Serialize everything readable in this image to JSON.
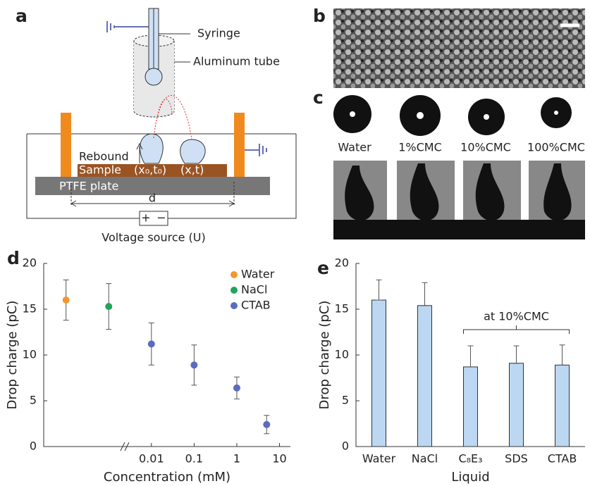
{
  "panel_labels": [
    "a",
    "b",
    "c",
    "d",
    "e"
  ],
  "diagram": {
    "syringe": "Syringe",
    "tube": "Aluminum tube",
    "rebound": "Rebound",
    "sample": "Sample",
    "position0": "(x₀,t₀)",
    "position": "(x,t)",
    "plate": "PTFE plate",
    "distance": "d",
    "plus": "+",
    "minus": "−",
    "source": "Voltage source (U)"
  },
  "images": {
    "liquids": [
      "Water",
      "1%CMC",
      "10%CMC",
      "100%CMC"
    ]
  },
  "chart_data": [
    {
      "type": "scatter",
      "x_label": "Concentration (mM)",
      "y_label": "Drop charge (pC)",
      "xscale": "log",
      "xlim": [
        3e-05,
        18
      ],
      "ylim": [
        0,
        20
      ],
      "xticks": [
        0.01,
        0.1,
        1,
        10
      ],
      "yticks": [
        0,
        5,
        10,
        15,
        20
      ],
      "legend": "upper right",
      "series": [
        {
          "name": "Water",
          "color": "#f4962f",
          "x": [
            0.0001
          ],
          "values": [
            16
          ],
          "errors": [
            2.2
          ]
        },
        {
          "name": "NaCl",
          "color": "#22a45a",
          "x": [
            0.001
          ],
          "values": [
            15.3
          ],
          "errors": [
            2.5
          ]
        },
        {
          "name": "CTAB",
          "color": "#5b6bc0",
          "x": [
            0.01,
            0.1,
            1,
            5
          ],
          "values": [
            11.2,
            8.9,
            6.4,
            2.4
          ],
          "errors": [
            2.3,
            2.2,
            1.2,
            1.0
          ]
        }
      ]
    },
    {
      "type": "bar",
      "x_label": "Liquid",
      "y_label": "Drop charge (pC)",
      "categories": [
        "Water",
        "NaCl",
        "C₈E₃",
        "SDS",
        "CTAB"
      ],
      "values": [
        16,
        15.4,
        8.7,
        9.1,
        8.9
      ],
      "errors": [
        2.2,
        2.5,
        2.3,
        1.9,
        2.2
      ],
      "color": "#bcd7f2",
      "ylim": [
        0,
        20
      ],
      "yticks": [
        0,
        5,
        10,
        15,
        20
      ],
      "annotation": "at 10%CMC"
    }
  ]
}
